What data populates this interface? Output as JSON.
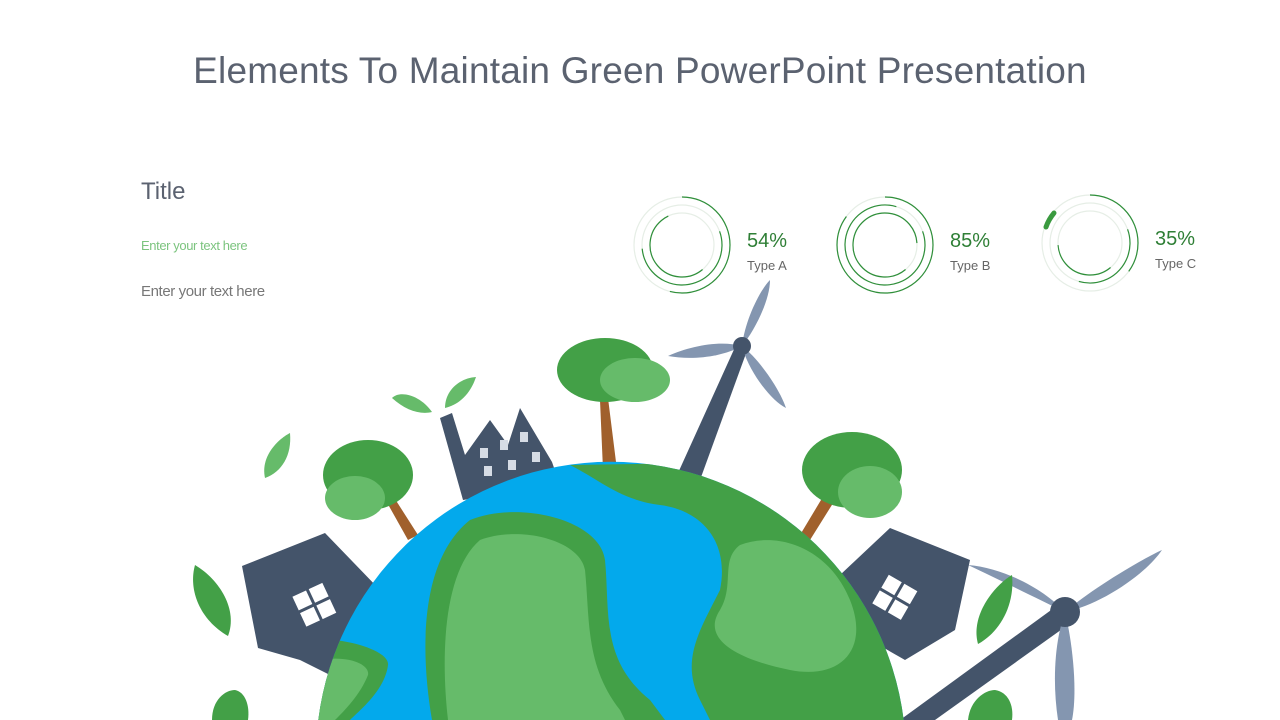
{
  "slide": {
    "title": "Elements To Maintain Green PowerPoint Presentation",
    "side_title": "Title",
    "text_green": "Enter your text here",
    "text_gray": "Enter your text here"
  },
  "gauges": [
    {
      "value": 54,
      "label_value": "54%",
      "label": "Type A"
    },
    {
      "value": 85,
      "label_value": "85%",
      "label": "Type B"
    },
    {
      "value": 35,
      "label_value": "35%",
      "label": "Type C"
    }
  ],
  "colors": {
    "accent_green": "#2f7f36",
    "ocean": "#03a9ec",
    "land_dark": "#43a047",
    "land_light": "#66bb6a",
    "building": "#44546a",
    "blade": "#8496b0",
    "trunk": "#a0602c"
  },
  "illustration_icons": [
    "globe-icon",
    "tree-icon",
    "house-icon",
    "factory-icon",
    "wind-turbine-icon",
    "leaf-icon"
  ]
}
